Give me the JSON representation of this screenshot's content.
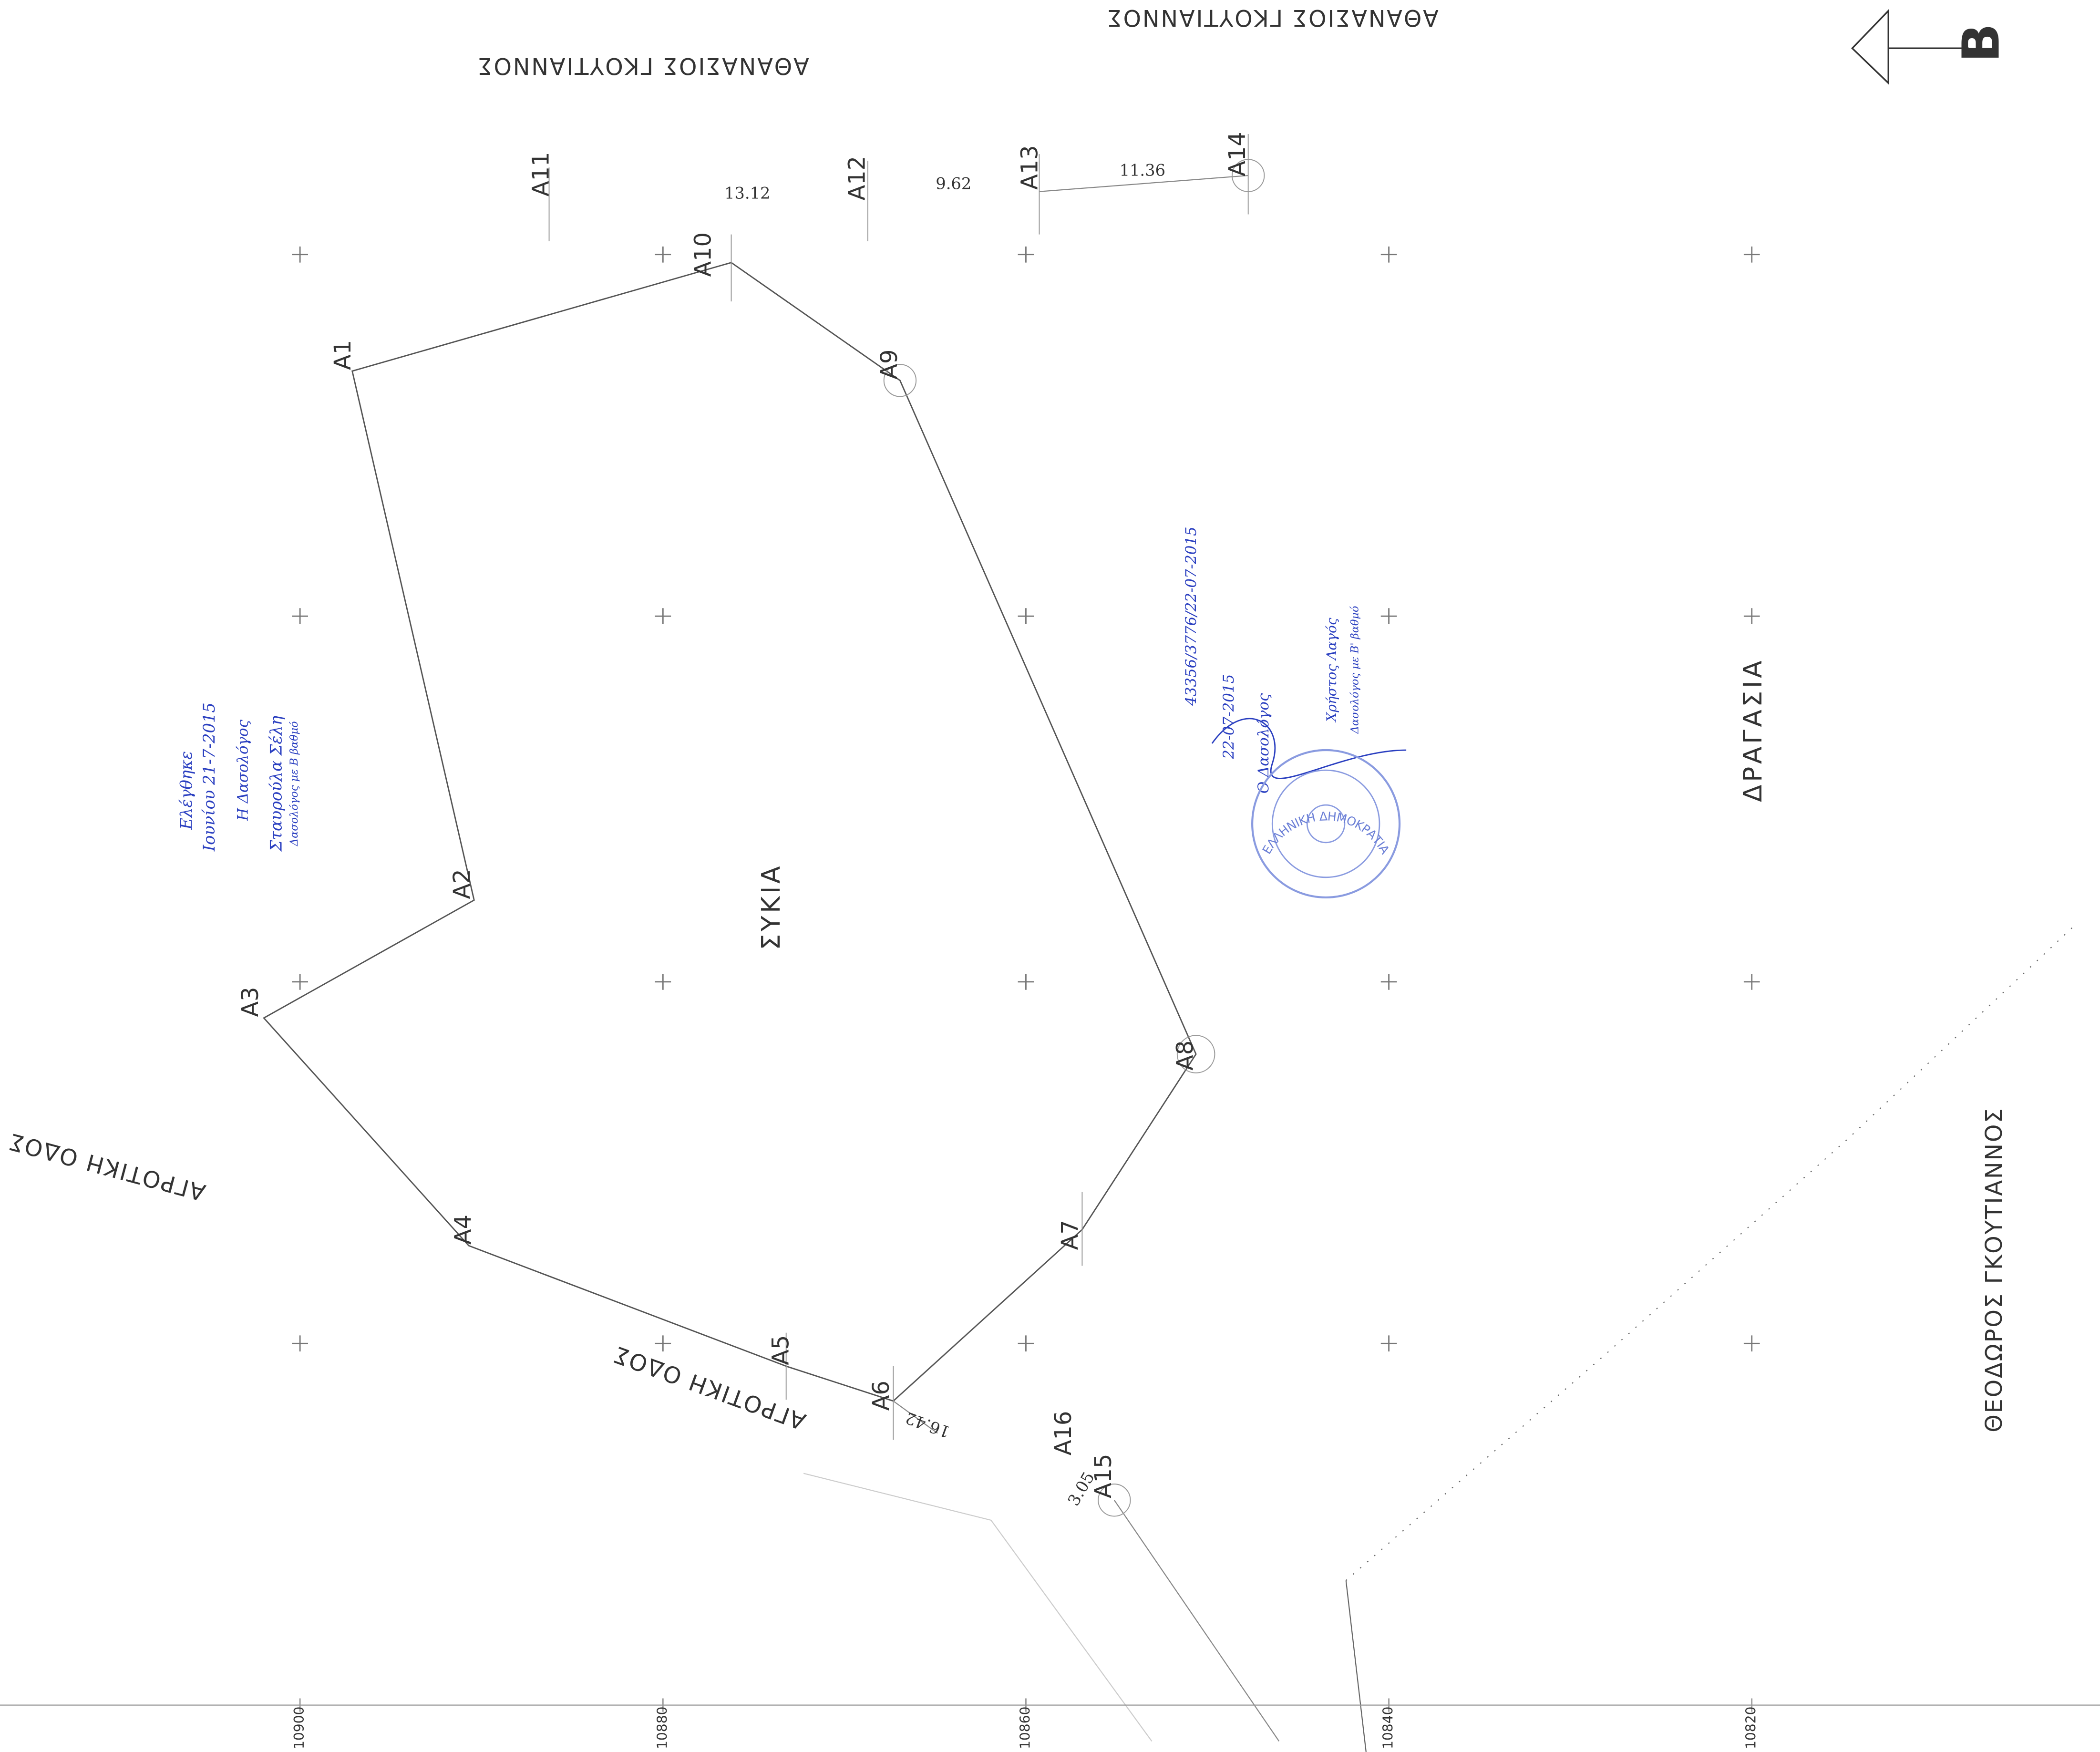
{
  "north_label": "B",
  "roads": [
    "ΑΘΑΝΑΣΙΟΣ ΓΚΟΥΤΙΑΝΝΟΣ",
    "ΑΘΑΝΑΣΙΟΣ ΓΚΟΥΤΙΑΝΝΟΣ",
    "ΑΓΡΟΤΙΚΗ ΟΔΟΣ",
    "ΑΓΡΟΤΙΚΗ ΟΔΟΣ",
    "ΘΕΟΔΩΡΟΣ ΓΚΟΥΤΙΑΝΝΟΣ"
  ],
  "areas": [
    "ΣΥΚΙΑ",
    "ΔΡΑΓΑΣΙΑ"
  ],
  "points": [
    "A1",
    "A2",
    "A3",
    "A4",
    "A5",
    "A6",
    "A7",
    "A8",
    "A9",
    "A10",
    "A11",
    "A12",
    "A13",
    "A14",
    "A15",
    "A16"
  ],
  "distances": [
    13.12,
    9.62,
    11.36,
    16.42,
    3.05
  ],
  "axis_labels": [
    10900,
    10880,
    10860,
    10840,
    10820
  ],
  "handwritten_note": [
    "Ελέγθηκε",
    "Ιουνίου 21-7-2015",
    "Η Δασολόγος",
    "Σταυρούλα Σέλη",
    "Δασολόγος με Β βαθμό"
  ],
  "stamp": [
    "43356/3776/22-07-2015",
    "22-07-2015",
    "Ο Δασολόγος",
    "Χρήστος Λαγός",
    "Δασολόγος με Β' βαθμό",
    "ΕΛΛΗΝΙΚΗ ΔΗΜΟΚΡΑΤΙΑ"
  ]
}
